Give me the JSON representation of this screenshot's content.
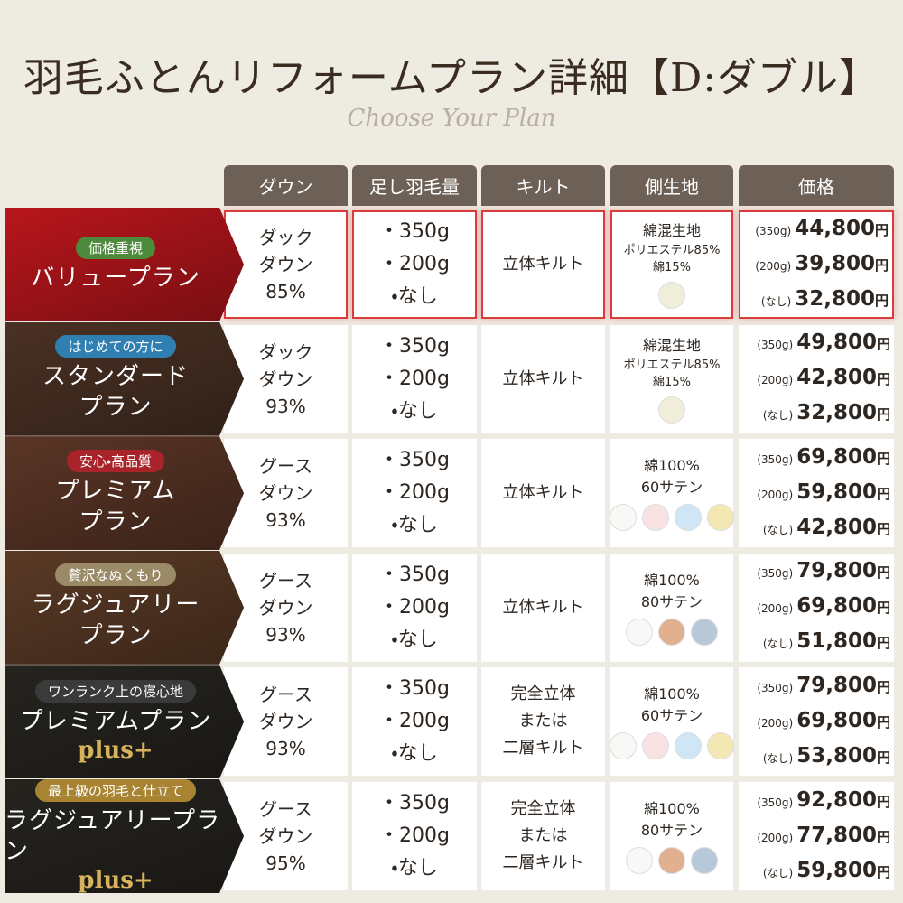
{
  "title": "羽毛ふとんリフォームプラン詳細【D:ダブル】",
  "subtitle": "Choose Your Plan",
  "headers": [
    "ダウン",
    "足し羽毛量",
    "キルト",
    "側生地",
    "価格"
  ],
  "plans": [
    {
      "badge": "価格重視",
      "badge_color": "#4d8a3c",
      "color": "#b8161c",
      "highlight": true,
      "name": [
        "バリュープラン"
      ],
      "down": [
        "ダック",
        "ダウン",
        "85%"
      ],
      "amounts": [
        "350g",
        "200g",
        "なし"
      ],
      "quilt": [
        "立体キルト"
      ],
      "fabric": [
        "綿混生地",
        "ポリエステル85%",
        "綿15%"
      ],
      "swatches": [
        "#f1eddb"
      ],
      "prices": [
        {
          "label": "(350g)",
          "amount": "44,800",
          "unit": "円"
        },
        {
          "label": "(200g)",
          "amount": "39,800",
          "unit": "円"
        },
        {
          "label": "(なし)",
          "amount": "32,800",
          "unit": "円"
        }
      ]
    },
    {
      "badge": "はじめての方に",
      "badge_color": "#2f7fb3",
      "color": "#4a3124",
      "name": [
        "スタンダード",
        "プラン"
      ],
      "down": [
        "ダック",
        "ダウン",
        "93%"
      ],
      "amounts": [
        "350g",
        "200g",
        "なし"
      ],
      "quilt": [
        "立体キルト"
      ],
      "fabric": [
        "綿混生地",
        "ポリエステル85%",
        "綿15%"
      ],
      "swatches": [
        "#f1eddb"
      ],
      "prices": [
        {
          "label": "(350g)",
          "amount": "49,800",
          "unit": "円"
        },
        {
          "label": "(200g)",
          "amount": "42,800",
          "unit": "円"
        },
        {
          "label": "(なし)",
          "amount": "32,800",
          "unit": "円"
        }
      ]
    },
    {
      "badge": "安心・高品質",
      "badge_color": "#a8242a",
      "color": "#5a3526",
      "name": [
        "プレミアム",
        "プラン"
      ],
      "down": [
        "グース",
        "ダウン",
        "93%"
      ],
      "amounts": [
        "350g",
        "200g",
        "なし"
      ],
      "quilt": [
        "立体キルト"
      ],
      "fabric": [
        "綿100%",
        "60サテン"
      ],
      "swatches": [
        "#f8f8f6",
        "#f8e2e2",
        "#cfe6f6",
        "#f3e8b4"
      ],
      "prices": [
        {
          "label": "(350g)",
          "amount": "69,800",
          "unit": "円"
        },
        {
          "label": "(200g)",
          "amount": "59,800",
          "unit": "円"
        },
        {
          "label": "(なし)",
          "amount": "42,800",
          "unit": "円"
        }
      ]
    },
    {
      "badge": "贅沢なぬくもり",
      "badge_color": "#9b8a66",
      "color": "#5a3a26",
      "name": [
        "ラグジュアリー",
        "プラン"
      ],
      "down": [
        "グース",
        "ダウン",
        "93%"
      ],
      "amounts": [
        "350g",
        "200g",
        "なし"
      ],
      "quilt": [
        "立体キルト"
      ],
      "fabric": [
        "綿100%",
        "80サテン"
      ],
      "swatches": [
        "#f8f8f6",
        "#e0b08f",
        "#b7c9d8"
      ],
      "prices": [
        {
          "label": "(350g)",
          "amount": "79,800",
          "unit": "円"
        },
        {
          "label": "(200g)",
          "amount": "69,800",
          "unit": "円"
        },
        {
          "label": "(なし)",
          "amount": "51,800",
          "unit": "円"
        }
      ]
    },
    {
      "badge": "ワンランク上の寝心地",
      "badge_color": "#3a3a3a",
      "color": "#26241f",
      "name": [
        "プレミアムプラン"
      ],
      "plus": "plus+",
      "down": [
        "グース",
        "ダウン",
        "93%"
      ],
      "amounts": [
        "350g",
        "200g",
        "なし"
      ],
      "quilt": [
        "完全立体",
        "または",
        "二層キルト"
      ],
      "fabric": [
        "綿100%",
        "60サテン"
      ],
      "swatches": [
        "#f8f8f6",
        "#f8e2e2",
        "#cfe6f6",
        "#f3e8b4"
      ],
      "prices": [
        {
          "label": "(350g)",
          "amount": "79,800",
          "unit": "円"
        },
        {
          "label": "(200g)",
          "amount": "69,800",
          "unit": "円"
        },
        {
          "label": "(なし)",
          "amount": "53,800",
          "unit": "円"
        }
      ]
    },
    {
      "badge": "最上級の羽毛と仕立て",
      "badge_color": "#a88432",
      "color": "#26241f",
      "name": [
        "ラグジュアリープラン"
      ],
      "plus": "plus+",
      "down": [
        "グース",
        "ダウン",
        "95%"
      ],
      "amounts": [
        "350g",
        "200g",
        "なし"
      ],
      "quilt": [
        "完全立体",
        "または",
        "二層キルト"
      ],
      "fabric": [
        "綿100%",
        "80サテン"
      ],
      "swatches": [
        "#f8f8f6",
        "#e0b08f",
        "#b7c9d8"
      ],
      "prices": [
        {
          "label": "(350g)",
          "amount": "92,800",
          "unit": "円"
        },
        {
          "label": "(200g)",
          "amount": "77,800",
          "unit": "円"
        },
        {
          "label": "(なし)",
          "amount": "59,800",
          "unit": "円"
        }
      ]
    }
  ]
}
